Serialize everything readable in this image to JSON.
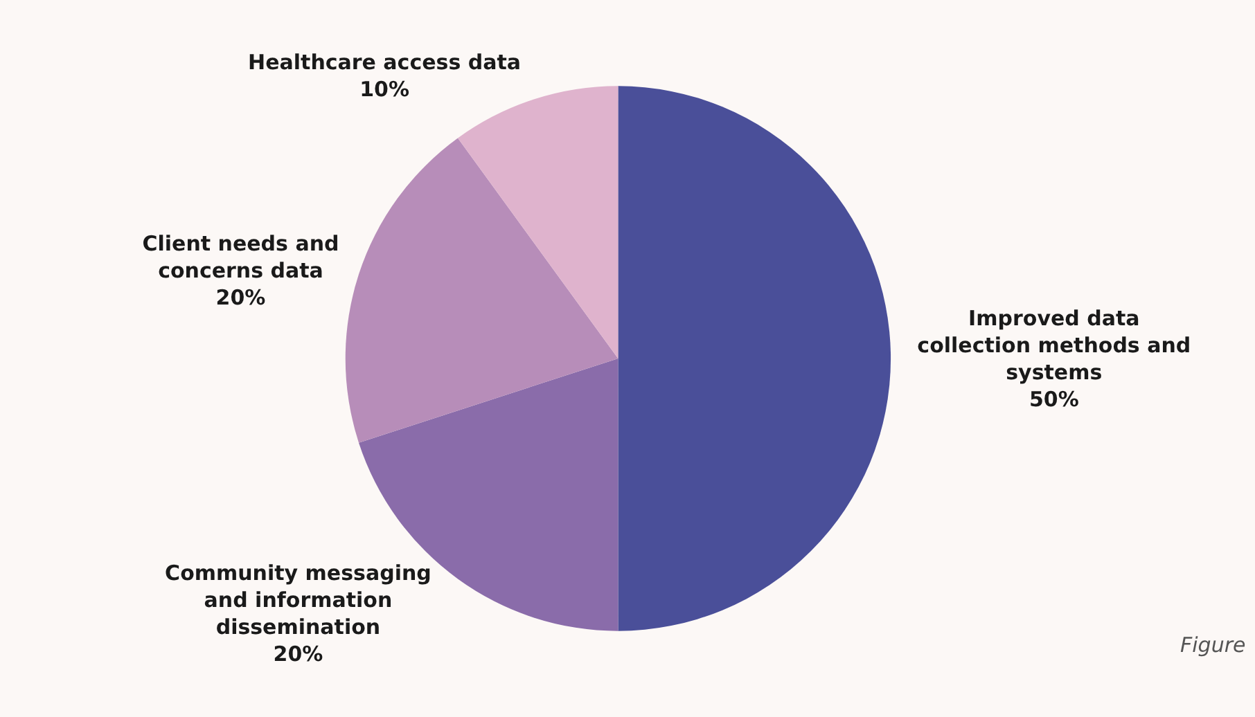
{
  "chart_data": {
    "type": "pie",
    "categories": [
      "Improved data collection methods and systems",
      "Community messaging and information dissemination",
      "Client needs and concerns data",
      "Healthcare access data"
    ],
    "values": [
      50,
      20,
      20,
      10
    ],
    "colors": [
      "#4a4f99",
      "#8a6caa",
      "#b78db9",
      "#dfb3cd"
    ],
    "value_labels": [
      "50%",
      "20%",
      "20%",
      "10%"
    ],
    "annotations": [
      "Figure"
    ],
    "legend": false
  }
}
